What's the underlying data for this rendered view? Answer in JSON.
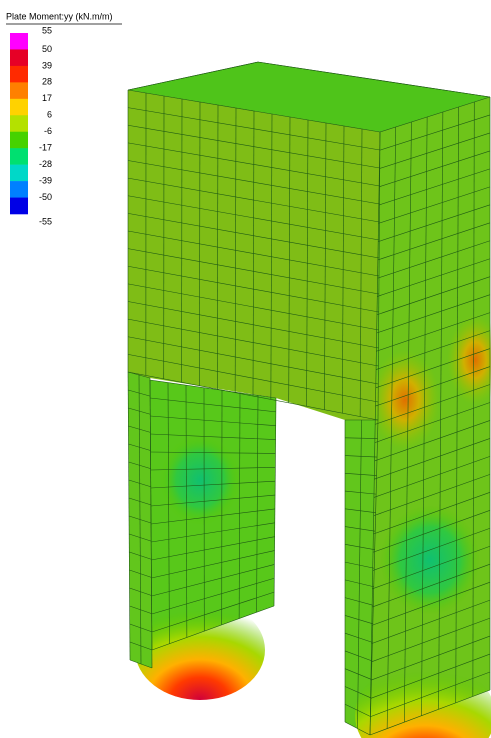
{
  "legend": {
    "title": "Plate Moment:yy (kN.m/m)",
    "labels": [
      55,
      50,
      39,
      28,
      17,
      6,
      -6,
      -17,
      -28,
      -39,
      -50,
      -55
    ],
    "colors": [
      "#ff00ff",
      "#e60026",
      "#ff2a00",
      "#ff8000",
      "#ffd200",
      "#b4e100",
      "#46d200",
      "#00e070",
      "#00d8c8",
      "#0080ff",
      "#0000e6"
    ]
  }
}
